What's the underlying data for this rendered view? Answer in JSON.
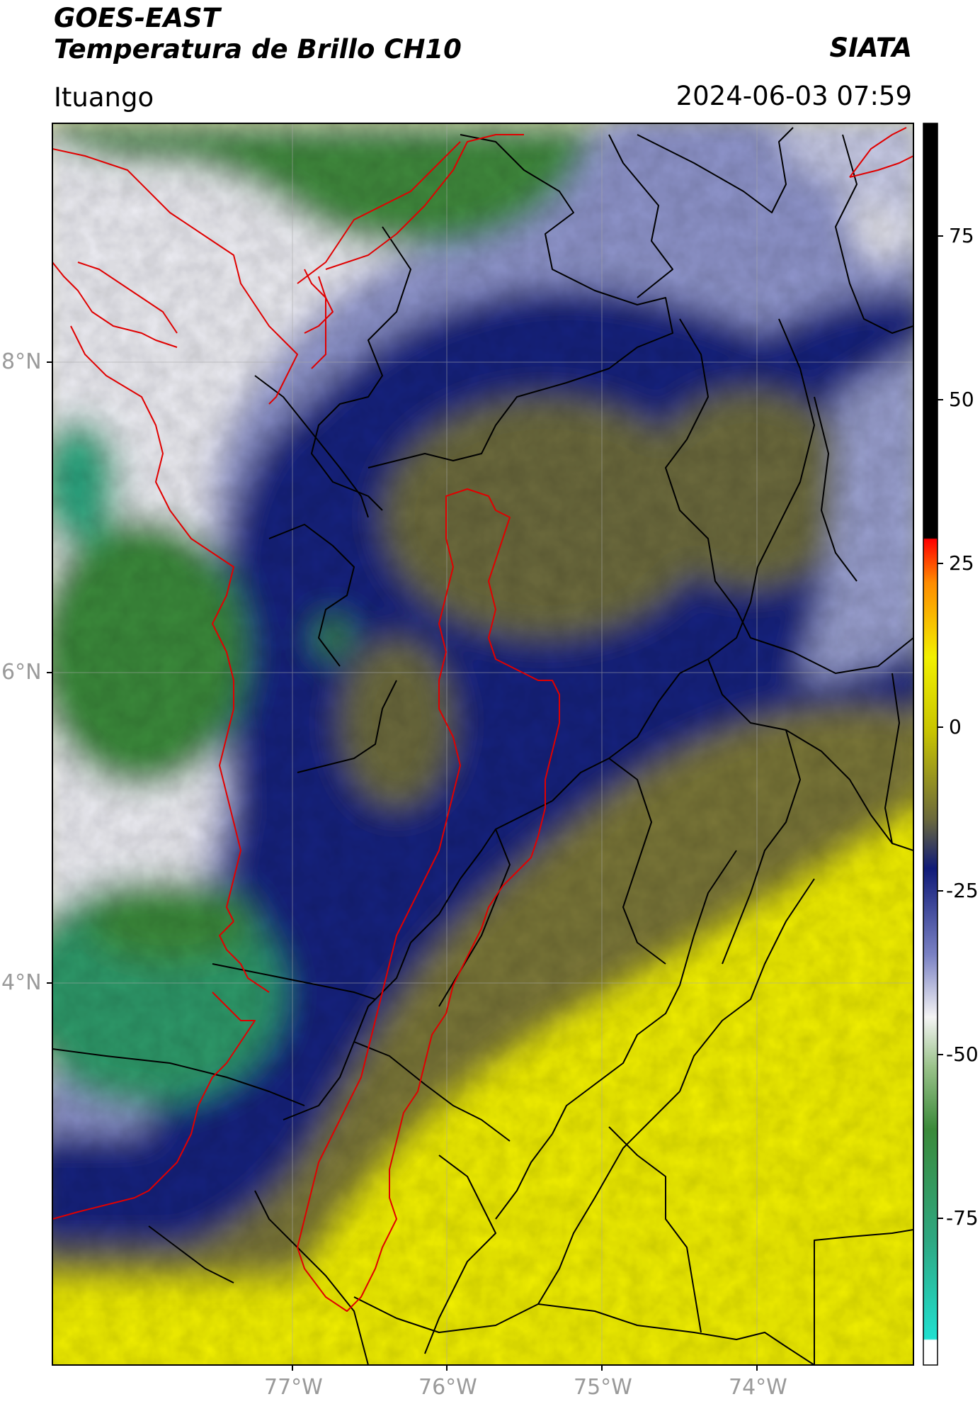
{
  "header": {
    "title_line1": "GOES-EAST",
    "title_line2": "Temperatura de Brillo CH10",
    "brand": "SIATA",
    "location": "Ituango",
    "timestamp": "2024-06-03 07:59"
  },
  "map": {
    "lat_labels": [
      "8°N",
      "6°N",
      "4°N"
    ],
    "lon_labels": [
      "77°W",
      "76°W",
      "75°W",
      "74°W"
    ],
    "colors": {
      "cold_blue": "#0f1a78",
      "mid_blue": "#5a63b4",
      "white": "#f2f2f2",
      "green": "#3b8a3a",
      "teal": "#2ea882",
      "olive": "#6c6a3c",
      "yellow": "#f2f000",
      "border_red": "#e00000",
      "border_black": "#000000"
    }
  },
  "colorbar": {
    "ticks": [
      "75",
      "50",
      "25",
      "0",
      "-25",
      "-50",
      "-75"
    ],
    "colors": [
      "#ffffff",
      "#20e0d0",
      "#2ea882",
      "#3b8a3a",
      "#9ac28a",
      "#f4f4f4",
      "#7b82c4",
      "#0f1a78",
      "#6c6a3c",
      "#c8c400",
      "#f2f000",
      "#ff8c00",
      "#ff0000",
      "#000000"
    ]
  }
}
